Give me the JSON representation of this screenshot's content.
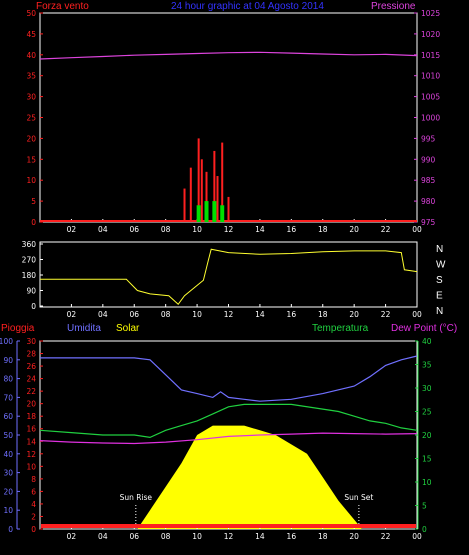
{
  "header": {
    "title": "24 hour graphic at 04 Agosto 2014",
    "left_label": "Forza vento",
    "right_label": "Pressione"
  },
  "colors": {
    "wind": "#ff2020",
    "gust": "#00e000",
    "pressure": "#dd44dd",
    "direction": "#ffff30",
    "rain": "#ff2020",
    "humidity": "#7070ff",
    "solar": "#ffff00",
    "temperature": "#20d040",
    "dewpoint": "#e030e0",
    "title": "#3333ff",
    "axis": "#ffffff"
  },
  "x_ticks": [
    "02",
    "04",
    "06",
    "08",
    "10",
    "12",
    "14",
    "16",
    "18",
    "20",
    "22",
    "00"
  ],
  "chart_data": [
    {
      "type": "bar",
      "name": "wind",
      "y_left_ticks": [
        "0",
        "5",
        "10",
        "15",
        "20",
        "25",
        "30",
        "35",
        "40",
        "45",
        "50"
      ],
      "y_right_ticks": [
        "975",
        "980",
        "985",
        "990",
        "995",
        "1000",
        "1005",
        "1010",
        "1015",
        "1020",
        "1025"
      ],
      "ylim_left": [
        0,
        50
      ],
      "ylim_right": [
        975,
        1025
      ],
      "pressure": {
        "x": [
          0,
          2,
          4,
          6,
          8,
          10,
          12,
          14,
          16,
          18,
          20,
          22,
          24
        ],
        "y": [
          1014,
          1014.3,
          1014.6,
          1014.9,
          1015.1,
          1015.3,
          1015.5,
          1015.6,
          1015.4,
          1015.2,
          1015.0,
          1015.1,
          1014.8
        ]
      },
      "wind_bars": {
        "x": [
          9.2,
          9.6,
          10.1,
          10.3,
          10.6,
          11.1,
          11.3,
          11.6,
          12.0
        ],
        "y": [
          8,
          13,
          20,
          15,
          12,
          17,
          11,
          19,
          6
        ]
      },
      "gust_bars": {
        "x": [
          10.1,
          10.6,
          11.1,
          11.6
        ],
        "y": [
          4,
          5,
          5,
          4
        ]
      }
    },
    {
      "type": "line",
      "name": "direction",
      "y_left_ticks": [
        "0",
        "90",
        "180",
        "270",
        "360"
      ],
      "y_right_ticks": [
        "N",
        "W",
        "S",
        "E",
        "N"
      ],
      "ylim": [
        0,
        360
      ],
      "x": [
        0,
        5.5,
        6.2,
        7.0,
        8.2,
        8.8,
        9.2,
        10.4,
        10.7,
        10.9,
        12,
        14,
        16,
        18,
        20,
        22,
        23.0,
        23.2,
        24
      ],
      "y": [
        155,
        155,
        90,
        70,
        60,
        10,
        60,
        150,
        260,
        330,
        310,
        300,
        305,
        315,
        320,
        320,
        310,
        210,
        200
      ]
    },
    {
      "type": "area",
      "name": "climate",
      "labels": [
        "Pioggia",
        "Umidita",
        "Solar",
        "Temperatura",
        "Dew Point (°C)"
      ],
      "y_humidity_ticks": [
        "0",
        "10",
        "20",
        "30",
        "40",
        "50",
        "60",
        "70",
        "80",
        "90",
        "100"
      ],
      "y_rain_ticks": [
        "0",
        "2",
        "4",
        "6",
        "8",
        "10",
        "12",
        "14",
        "16",
        "18",
        "20",
        "22",
        "24",
        "26",
        "28",
        "30"
      ],
      "y_temp_ticks": [
        "0",
        "5",
        "10",
        "15",
        "20",
        "25",
        "30",
        "35",
        "40"
      ],
      "ylim_humidity": [
        0,
        100
      ],
      "ylim_temp": [
        0,
        40
      ],
      "annotations": {
        "sunrise": "Sun Rise",
        "sunset": "Sun Set",
        "sunrise_x": 6.1,
        "sunset_x": 20.3
      },
      "humidity": {
        "x": [
          0,
          2,
          4,
          6,
          7,
          8,
          9,
          10,
          11,
          11.5,
          12,
          13,
          14,
          16,
          18,
          20,
          21,
          22,
          23,
          24
        ],
        "y": [
          91,
          91,
          91,
          91,
          90,
          82,
          74,
          72,
          70,
          73,
          70,
          69,
          68,
          69,
          72,
          76,
          81,
          87,
          90,
          92
        ]
      },
      "temperature": {
        "x": [
          0,
          2,
          4,
          6,
          7,
          8,
          9,
          10,
          11,
          12,
          13,
          14,
          16,
          18,
          19,
          20,
          21,
          22,
          23,
          24
        ],
        "y": [
          21,
          20.5,
          20,
          20,
          19.5,
          21,
          22,
          23,
          24.5,
          26,
          26.5,
          26.5,
          26.5,
          25.5,
          25,
          24,
          23,
          22.5,
          21.5,
          21
        ]
      },
      "dewpoint": {
        "x": [
          0,
          2,
          4,
          6,
          8,
          10,
          12,
          14,
          16,
          18,
          20,
          22,
          24
        ],
        "y": [
          18.8,
          18.5,
          18.3,
          18.2,
          18.5,
          19,
          19.7,
          20,
          20.2,
          20.4,
          20.3,
          20.2,
          20.3
        ]
      },
      "solar": {
        "x": [
          6.2,
          7,
          8,
          9,
          10,
          11,
          12,
          13,
          14,
          15,
          16,
          17,
          18,
          19,
          20,
          20.5
        ],
        "y": [
          0,
          4,
          9,
          14,
          20,
          22,
          22,
          22,
          21,
          20,
          18,
          16,
          11,
          6,
          2,
          0
        ]
      },
      "rain": 0
    }
  ]
}
